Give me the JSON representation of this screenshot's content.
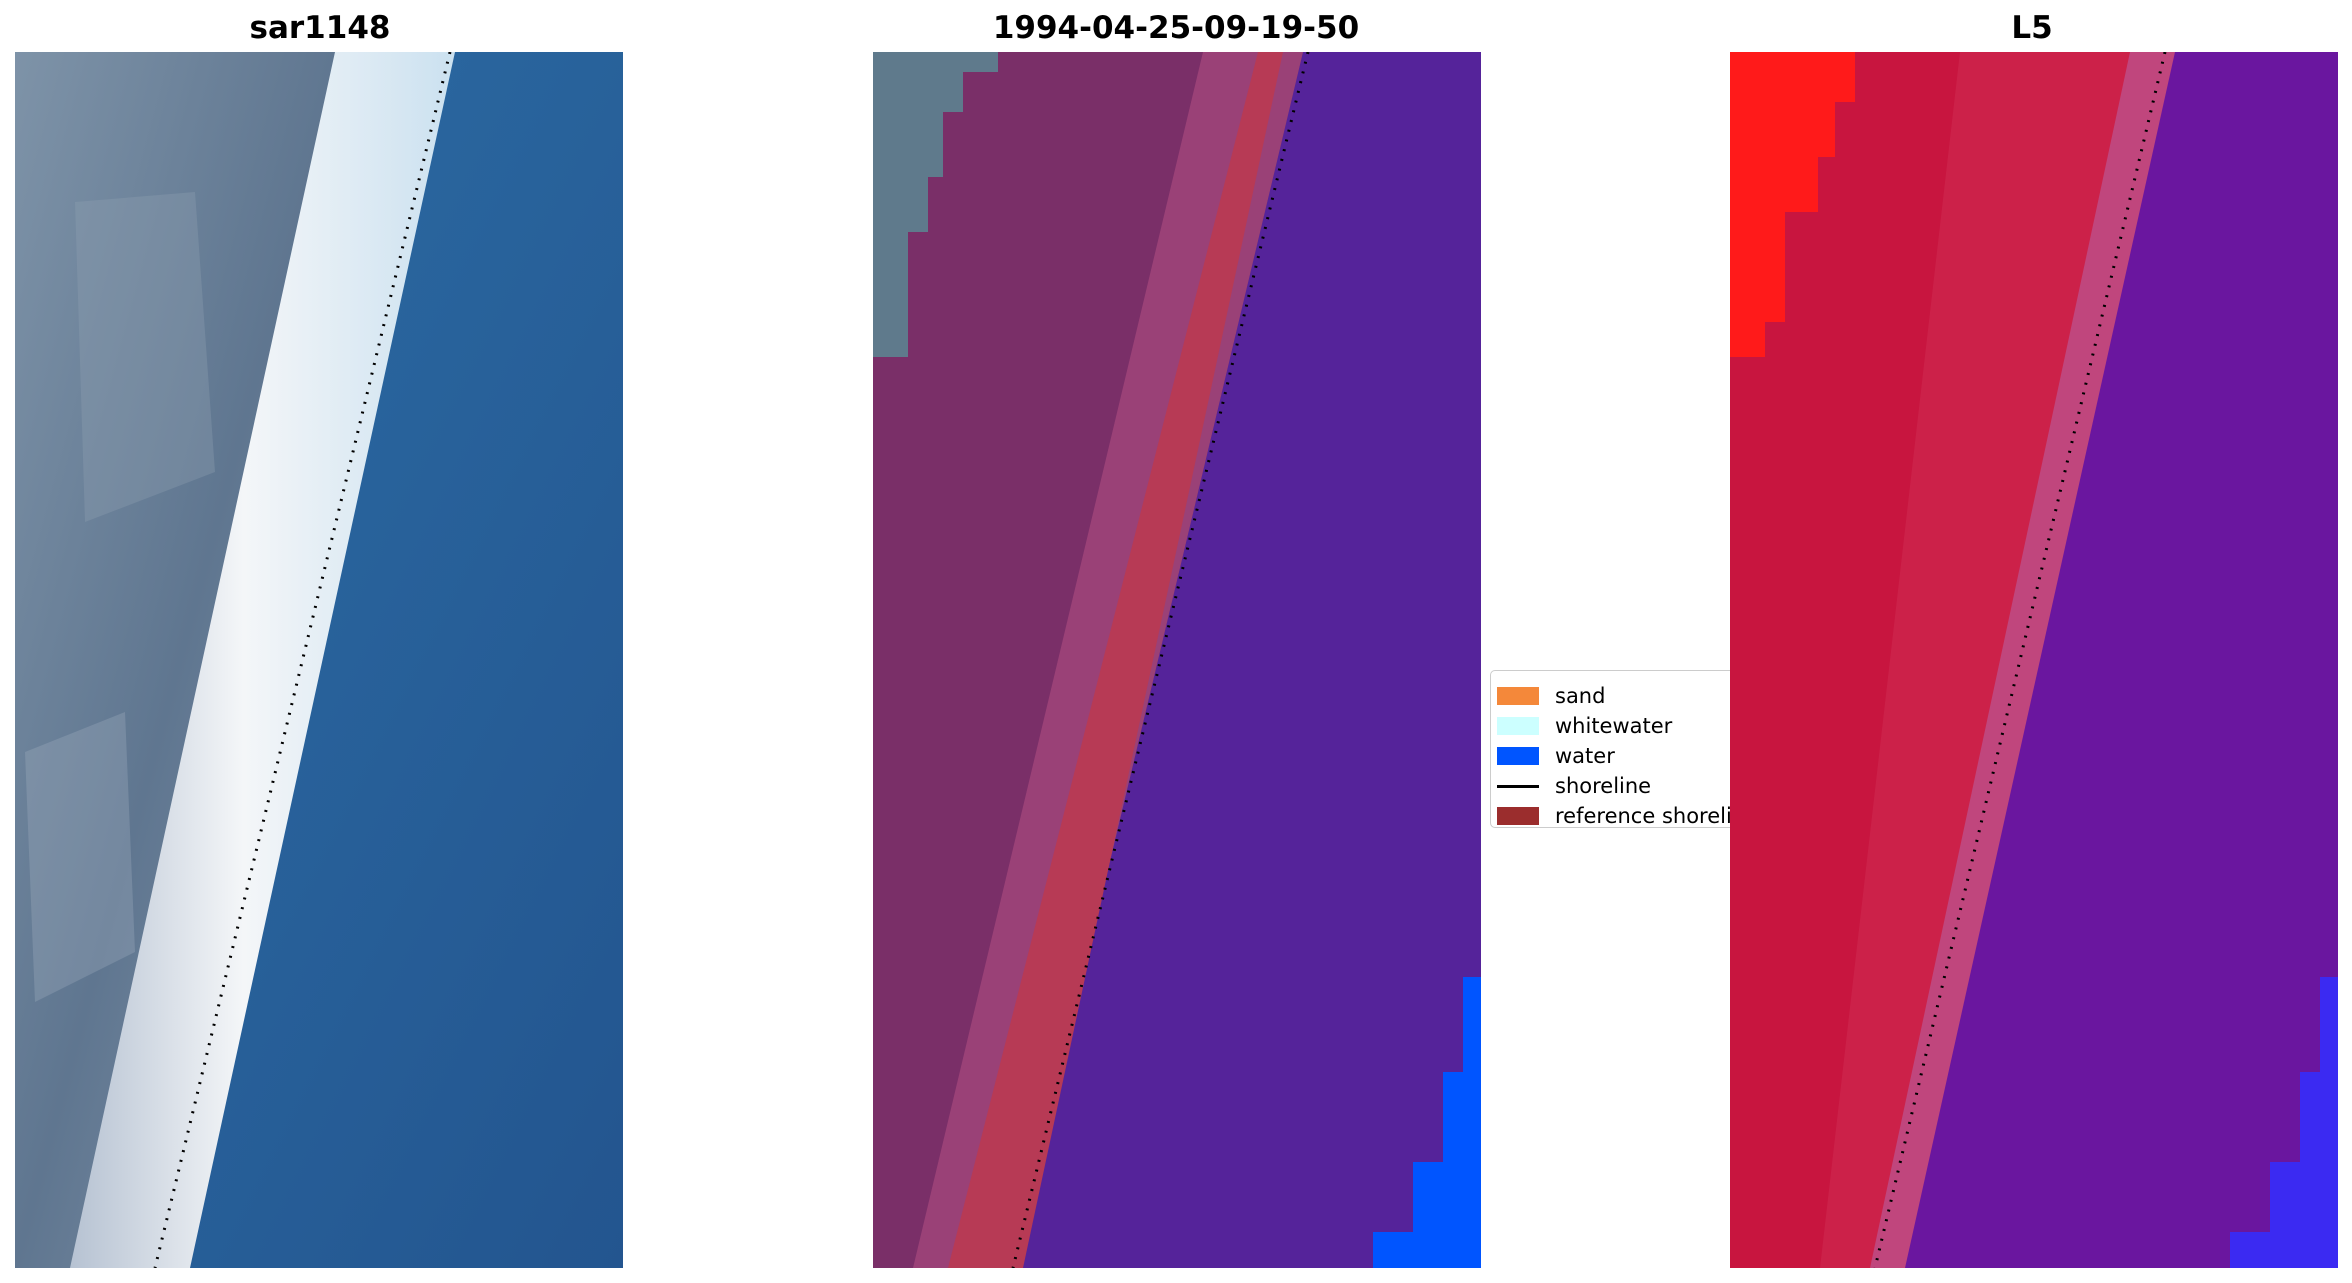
{
  "panels": [
    {
      "title": "sar1148",
      "kind": "rgb"
    },
    {
      "title": "1994-04-25-09-19-50",
      "kind": "classified"
    },
    {
      "title": "L5",
      "kind": "index"
    }
  ],
  "legend": {
    "items": [
      {
        "label": "sand",
        "color": "#f4883a",
        "type": "patch"
      },
      {
        "label": "whitewater",
        "color": "#ccffff",
        "type": "patch"
      },
      {
        "label": "water",
        "color": "#0055ff",
        "type": "patch"
      },
      {
        "label": "shoreline",
        "color": "#000000",
        "type": "line"
      },
      {
        "label": "reference shoreline",
        "color": "#9b2d2d",
        "type": "patch"
      }
    ]
  },
  "colors": {
    "rgb_land": "#6a7f96",
    "rgb_surf": "#e6ecf2",
    "rgb_sea": "#2a5f96",
    "class_land": "#7a2f68",
    "class_wet_sand": "#b73a55",
    "class_sea": "#55239a",
    "class_water": "#0055ff",
    "index_land": "#c8153f",
    "index_land_bright": "#ff1a1a",
    "index_sea": "#6a169f",
    "shoreline": "#000000"
  }
}
